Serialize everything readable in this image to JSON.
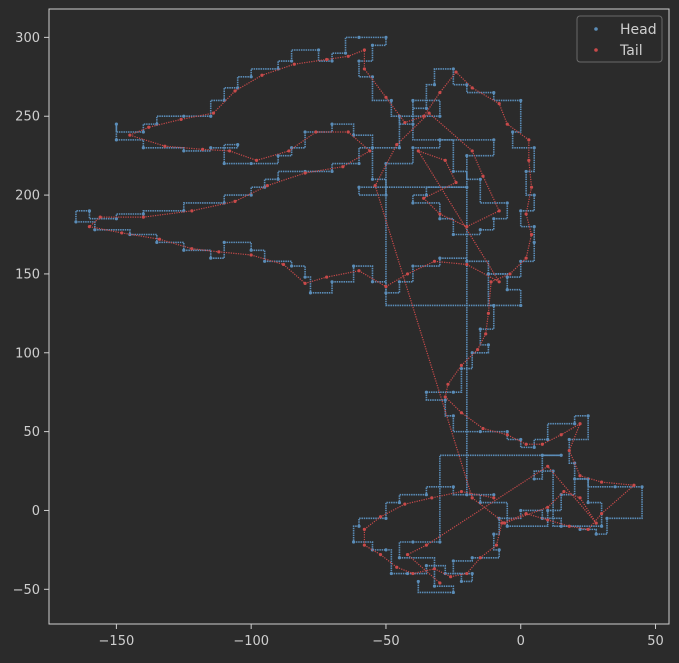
{
  "chart_data": {
    "type": "scatter",
    "title": "",
    "xlabel": "",
    "ylabel": "",
    "xlim": [
      -175,
      55
    ],
    "ylim": [
      -72,
      318
    ],
    "xticks": [
      -150,
      -100,
      -50,
      0,
      50
    ],
    "yticks": [
      -50,
      0,
      50,
      100,
      150,
      200,
      250,
      300
    ],
    "xtick_labels": [
      "−150",
      "−100",
      "−50",
      "0",
      "50"
    ],
    "ytick_labels": [
      "−50",
      "0",
      "50",
      "100",
      "150",
      "200",
      "250",
      "300"
    ],
    "grid": false,
    "legend_position": "top-right",
    "colors": {
      "background": "#2b2b2b",
      "axes": "#cfcfcf",
      "text": "#cfcfcf",
      "head": "#5b8db8",
      "tail": "#c94a4a"
    },
    "series": [
      {
        "name": "Head",
        "color": "#5b8db8",
        "marker": "point",
        "points": [
          [
            -10,
            10
          ],
          [
            -25,
            15
          ],
          [
            -35,
            10
          ],
          [
            -45,
            5
          ],
          [
            -50,
            -5
          ],
          [
            -60,
            -10
          ],
          [
            -62,
            -20
          ],
          [
            -55,
            -25
          ],
          [
            -50,
            -25
          ],
          [
            -48,
            -40
          ],
          [
            -42,
            -40
          ],
          [
            -35,
            -35
          ],
          [
            -28,
            -40
          ],
          [
            -22,
            -45
          ],
          [
            -18,
            -40
          ],
          [
            -25,
            -32
          ],
          [
            -18,
            -30
          ],
          [
            -8,
            -25
          ],
          [
            -10,
            -15
          ],
          [
            -8,
            -5
          ],
          [
            0,
            0
          ],
          [
            8,
            -5
          ],
          [
            15,
            -10
          ],
          [
            22,
            -12
          ],
          [
            28,
            -15
          ],
          [
            32,
            -5
          ],
          [
            45,
            15
          ],
          [
            35,
            15
          ],
          [
            25,
            20
          ],
          [
            20,
            30
          ],
          [
            18,
            45
          ],
          [
            25,
            60
          ],
          [
            20,
            55
          ],
          [
            10,
            45
          ],
          [
            5,
            40
          ],
          [
            0,
            45
          ],
          [
            -5,
            50
          ],
          [
            -15,
            50
          ],
          [
            -25,
            60
          ],
          [
            -28,
            70
          ],
          [
            -35,
            75
          ],
          [
            -25,
            75
          ],
          [
            -22,
            90
          ],
          [
            -18,
            100
          ],
          [
            -12,
            105
          ],
          [
            -15,
            115
          ],
          [
            -10,
            130
          ],
          [
            -12,
            150
          ],
          [
            -5,
            148
          ],
          [
            0,
            158
          ],
          [
            5,
            170
          ],
          [
            5,
            180
          ],
          [
            0,
            190
          ],
          [
            5,
            200
          ],
          [
            2,
            215
          ],
          [
            5,
            230
          ],
          [
            -3,
            240
          ],
          [
            0,
            260
          ],
          [
            -10,
            265
          ],
          [
            -20,
            270
          ],
          [
            -25,
            280
          ],
          [
            -32,
            270
          ],
          [
            -35,
            255
          ],
          [
            -40,
            245
          ],
          [
            -45,
            250
          ],
          [
            -48,
            260
          ],
          [
            -55,
            275
          ],
          [
            -60,
            285
          ],
          [
            -55,
            295
          ],
          [
            -50,
            300
          ],
          [
            -60,
            300
          ],
          [
            -65,
            290
          ],
          [
            -70,
            285
          ],
          [
            -75,
            292
          ],
          [
            -85,
            285
          ],
          [
            -90,
            280
          ],
          [
            -100,
            275
          ],
          [
            -105,
            268
          ],
          [
            -110,
            260
          ],
          [
            -115,
            250
          ],
          [
            -125,
            250
          ],
          [
            -135,
            245
          ],
          [
            -140,
            240
          ],
          [
            -150,
            245
          ],
          [
            -150,
            235
          ],
          [
            -140,
            230
          ],
          [
            -125,
            228
          ],
          [
            -115,
            230
          ],
          [
            -105,
            232
          ],
          [
            -110,
            220
          ],
          [
            -100,
            220
          ],
          [
            -90,
            225
          ],
          [
            -85,
            230
          ],
          [
            -80,
            240
          ],
          [
            -70,
            245
          ],
          [
            -62,
            238
          ],
          [
            -55,
            230
          ],
          [
            -60,
            220
          ],
          [
            -70,
            215
          ],
          [
            -80,
            215
          ],
          [
            -90,
            210
          ],
          [
            -95,
            205
          ],
          [
            -100,
            200
          ],
          [
            -110,
            195
          ],
          [
            -125,
            190
          ],
          [
            -140,
            188
          ],
          [
            -150,
            185
          ],
          [
            -160,
            190
          ],
          [
            -165,
            183
          ],
          [
            -158,
            178
          ],
          [
            -145,
            175
          ],
          [
            -135,
            170
          ],
          [
            -125,
            165
          ],
          [
            -115,
            160
          ],
          [
            -110,
            170
          ],
          [
            -100,
            165
          ],
          [
            -95,
            158
          ],
          [
            -85,
            155
          ],
          [
            -80,
            148
          ],
          [
            -78,
            138
          ],
          [
            -70,
            145
          ],
          [
            -62,
            155
          ],
          [
            -55,
            145
          ],
          [
            -50,
            138
          ],
          [
            -45,
            145
          ],
          [
            -40,
            155
          ],
          [
            -30,
            160
          ],
          [
            -20,
            158
          ],
          [
            -12,
            150
          ],
          [
            -5,
            140
          ],
          [
            0,
            130
          ],
          [
            -50,
            220
          ],
          [
            -40,
            230
          ],
          [
            -30,
            235
          ],
          [
            -25,
            215
          ],
          [
            -20,
            205
          ],
          [
            -35,
            200
          ],
          [
            -40,
            195
          ],
          [
            -30,
            185
          ],
          [
            -25,
            175
          ],
          [
            -15,
            178
          ],
          [
            -10,
            185
          ],
          [
            -5,
            195
          ],
          [
            -15,
            210
          ],
          [
            -20,
            225
          ],
          [
            -10,
            235
          ],
          [
            -40,
            260
          ],
          [
            -30,
            250
          ],
          [
            -45,
            230
          ],
          [
            -55,
            210
          ],
          [
            -50,
            200
          ],
          [
            -60,
            205
          ],
          [
            -20,
            10
          ],
          [
            -15,
            5
          ],
          [
            -5,
            -10
          ],
          [
            10,
            0
          ],
          [
            15,
            10
          ],
          [
            20,
            20
          ],
          [
            25,
            5
          ],
          [
            30,
            -10
          ],
          [
            12,
            25
          ],
          [
            5,
            20
          ],
          [
            8,
            35
          ],
          [
            15,
            35
          ],
          [
            -30,
            -20
          ],
          [
            -40,
            -20
          ],
          [
            -45,
            -30
          ],
          [
            -32,
            -48
          ],
          [
            -25,
            -52
          ],
          [
            -38,
            -45
          ]
        ]
      },
      {
        "name": "Tail",
        "color": "#c94a4a",
        "marker": "point",
        "points": [
          [
            -10,
            8
          ],
          [
            -22,
            12
          ],
          [
            -33,
            8
          ],
          [
            -43,
            4
          ],
          [
            -52,
            -4
          ],
          [
            -58,
            -12
          ],
          [
            -58,
            -22
          ],
          [
            -52,
            -28
          ],
          [
            -46,
            -36
          ],
          [
            -40,
            -40
          ],
          [
            -32,
            -37
          ],
          [
            -26,
            -42
          ],
          [
            -20,
            -40
          ],
          [
            -15,
            -30
          ],
          [
            -9,
            -22
          ],
          [
            -7,
            -8
          ],
          [
            2,
            -2
          ],
          [
            10,
            -6
          ],
          [
            18,
            -10
          ],
          [
            25,
            -12
          ],
          [
            30,
            -2
          ],
          [
            42,
            16
          ],
          [
            30,
            18
          ],
          [
            22,
            22
          ],
          [
            18,
            38
          ],
          [
            22,
            55
          ],
          [
            15,
            48
          ],
          [
            8,
            42
          ],
          [
            2,
            42
          ],
          [
            -5,
            48
          ],
          [
            -14,
            52
          ],
          [
            -22,
            62
          ],
          [
            -28,
            72
          ],
          [
            -27,
            80
          ],
          [
            -22,
            92
          ],
          [
            -16,
            102
          ],
          [
            -13,
            112
          ],
          [
            -12,
            125
          ],
          [
            -11,
            145
          ],
          [
            -4,
            150
          ],
          [
            2,
            160
          ],
          [
            4,
            175
          ],
          [
            2,
            188
          ],
          [
            4,
            205
          ],
          [
            3,
            222
          ],
          [
            3,
            235
          ],
          [
            -5,
            245
          ],
          [
            -8,
            258
          ],
          [
            -18,
            268
          ],
          [
            -24,
            278
          ],
          [
            -30,
            265
          ],
          [
            -36,
            250
          ],
          [
            -43,
            246
          ],
          [
            -50,
            262
          ],
          [
            -58,
            280
          ],
          [
            -58,
            292
          ],
          [
            -64,
            288
          ],
          [
            -72,
            286
          ],
          [
            -84,
            283
          ],
          [
            -96,
            276
          ],
          [
            -106,
            266
          ],
          [
            -114,
            252
          ],
          [
            -126,
            248
          ],
          [
            -138,
            243
          ],
          [
            -145,
            238
          ],
          [
            -132,
            231
          ],
          [
            -118,
            229
          ],
          [
            -108,
            228
          ],
          [
            -98,
            222
          ],
          [
            -86,
            228
          ],
          [
            -76,
            240
          ],
          [
            -64,
            240
          ],
          [
            -56,
            228
          ],
          [
            -66,
            218
          ],
          [
            -80,
            214
          ],
          [
            -94,
            206
          ],
          [
            -106,
            196
          ],
          [
            -122,
            190
          ],
          [
            -140,
            186
          ],
          [
            -156,
            186
          ],
          [
            -160,
            180
          ],
          [
            -148,
            176
          ],
          [
            -134,
            172
          ],
          [
            -122,
            166
          ],
          [
            -112,
            164
          ],
          [
            -100,
            162
          ],
          [
            -88,
            156
          ],
          [
            -80,
            144
          ],
          [
            -72,
            148
          ],
          [
            -60,
            152
          ],
          [
            -50,
            142
          ],
          [
            -42,
            150
          ],
          [
            -32,
            158
          ],
          [
            -20,
            156
          ],
          [
            -8,
            145
          ],
          [
            -38,
            228
          ],
          [
            -28,
            222
          ],
          [
            -24,
            208
          ],
          [
            -36,
            198
          ],
          [
            -30,
            188
          ],
          [
            -20,
            180
          ],
          [
            -8,
            190
          ],
          [
            -14,
            212
          ],
          [
            -18,
            228
          ],
          [
            -34,
            252
          ],
          [
            -46,
            232
          ],
          [
            -54,
            206
          ],
          [
            -18,
            8
          ],
          [
            -6,
            -8
          ],
          [
            10,
            2
          ],
          [
            16,
            12
          ],
          [
            22,
            8
          ],
          [
            28,
            -8
          ],
          [
            10,
            28
          ],
          [
            -35,
            -22
          ],
          [
            -42,
            -28
          ],
          [
            -30,
            -46
          ]
        ]
      }
    ]
  }
}
